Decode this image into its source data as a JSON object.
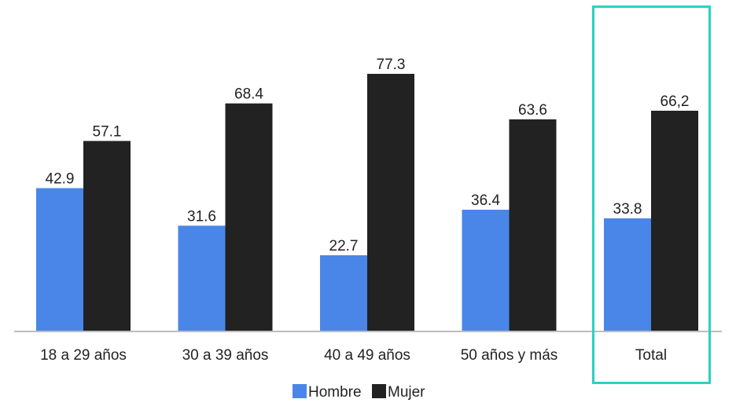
{
  "chart_data": {
    "type": "bar",
    "categories": [
      "18 a 29 años",
      "30 a 39 años",
      "40 a 49 años",
      "50 años y más",
      "Total"
    ],
    "series": [
      {
        "name": "Hombre",
        "color": "#4a86e8",
        "values": [
          42.9,
          31.6,
          22.7,
          36.4,
          33.8
        ],
        "labels": [
          "42.9",
          "31.6",
          "22.7",
          "36.4",
          "33.8"
        ]
      },
      {
        "name": "Mujer",
        "color": "#222222",
        "values": [
          57.1,
          68.4,
          77.3,
          63.6,
          66.2
        ],
        "labels": [
          "57.1",
          "68.4",
          "77.3",
          "63.6",
          "66,2"
        ]
      }
    ],
    "ylim": [
      0,
      100
    ],
    "grid": false,
    "legend_position": "bottom",
    "highlight": {
      "category": "Total",
      "color": "#2ad1c3"
    }
  }
}
